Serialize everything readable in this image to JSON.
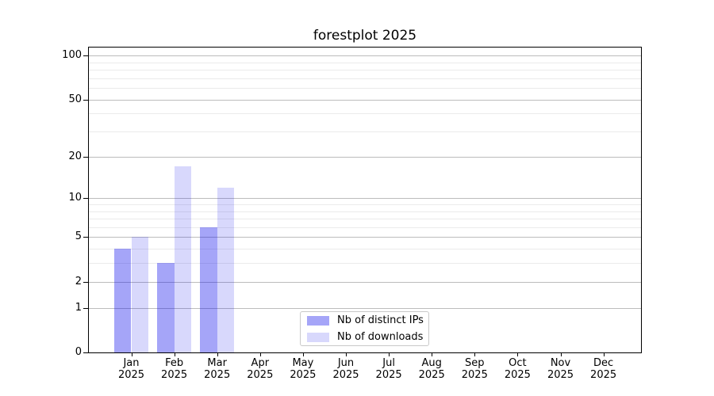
{
  "chart_data": {
    "type": "bar",
    "title": "forestplot 2025",
    "categories": [
      {
        "month": "Jan",
        "year": "2025"
      },
      {
        "month": "Feb",
        "year": "2025"
      },
      {
        "month": "Mar",
        "year": "2025"
      },
      {
        "month": "Apr",
        "year": "2025"
      },
      {
        "month": "May",
        "year": "2025"
      },
      {
        "month": "Jun",
        "year": "2025"
      },
      {
        "month": "Jul",
        "year": "2025"
      },
      {
        "month": "Aug",
        "year": "2025"
      },
      {
        "month": "Sep",
        "year": "2025"
      },
      {
        "month": "Oct",
        "year": "2025"
      },
      {
        "month": "Nov",
        "year": "2025"
      },
      {
        "month": "Dec",
        "year": "2025"
      }
    ],
    "series": [
      {
        "name": "Nb of distinct IPs",
        "fill": "rgba(10,10,235,0.37)",
        "hex_on_white": "#a8a8f8",
        "values": [
          4,
          3,
          6,
          0,
          0,
          0,
          0,
          0,
          0,
          0,
          0,
          0
        ]
      },
      {
        "name": "Nb of downloads",
        "fill": "rgba(10,10,235,0.16)",
        "hex_on_white": "#d8d8f8",
        "values": [
          5,
          17,
          12,
          0,
          0,
          0,
          0,
          0,
          0,
          0,
          0,
          0
        ]
      }
    ],
    "y_scale": "log10(1+v)",
    "y_ticks_major": [
      0,
      1,
      2,
      5,
      10,
      20,
      50,
      100
    ],
    "y_ticks_minor": [
      3,
      4,
      6,
      7,
      8,
      9,
      30,
      40,
      60,
      70,
      80,
      90
    ],
    "grid": {
      "on": true,
      "major_color": "#bcbcbc",
      "minor_color": "#ebebeb"
    },
    "legend": {
      "position": "lower center"
    },
    "xlabel": "",
    "ylabel": ""
  }
}
